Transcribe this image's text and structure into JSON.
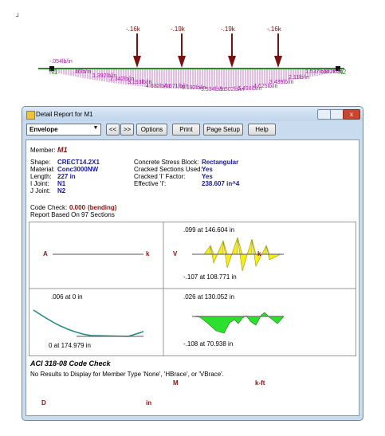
{
  "beam": {
    "loads": [
      "-.16k",
      "-.19k",
      "-.19k",
      "-.16k"
    ],
    "nodes": [
      "N1",
      "N2"
    ],
    "dist_labels": [
      "-.054lb/in",
      ".46lb/in",
      "1.392lb/in",
      "2.342lb/in",
      "3.193lb/in",
      "4.632lb/in",
      "4.671lb/in",
      "5.192lb/in",
      "5.534lb/in",
      "5.502lb/in",
      "5.498lb/in",
      "4.625lb/in",
      "3.439lb/in",
      "2.11lb/in",
      "1.537lb/in",
      ".572lb/in"
    ]
  },
  "window": {
    "title": "Detail Report for M1",
    "dropdown": "Envelope",
    "buttons": [
      "<<",
      ">>",
      "Options",
      "Print",
      "Page Setup",
      "Help"
    ]
  },
  "member": {
    "label": "Member:",
    "value": "M1"
  },
  "props_left": [
    [
      "Shape:",
      "CRECT14.2X1"
    ],
    [
      "Material:",
      "Conc3000NW"
    ],
    [
      "Length:",
      "227 in"
    ],
    [
      "I Joint:",
      "N1"
    ],
    [
      "J Joint:",
      "N2"
    ]
  ],
  "props_right": [
    [
      "Concrete Stress Block:",
      "Rectangular"
    ],
    [
      "Cracked Sections Used:",
      "Yes"
    ],
    [
      "Cracked 'I' Factor:",
      "Yes"
    ],
    [
      "Effective 'I':",
      "238.607 in^4"
    ]
  ],
  "code_check": {
    "label": "Code Check:",
    "value": "0.000",
    "note": "(bending)"
  },
  "report_note": "Report Based On 97 Sections",
  "diagrams": [
    {
      "left": "A",
      "right": "k"
    },
    {
      "left": "V",
      "right": "k",
      "max": ".099 at 146.604 in",
      "min": "-.107 at 108.771 in"
    },
    {
      "left": "D",
      "right": "in",
      "max": ".006 at 0 in",
      "min": "0 at 174.979 in"
    },
    {
      "left": "M",
      "right": "k-ft",
      "max": ".026 at 130.052 in",
      "min": "-.108 at 70.938 in"
    }
  ],
  "section": {
    "title": "ACI 318-08 Code Check",
    "message": "No Results to Display for Member Type 'None', 'HBrace', or 'VBrace'."
  }
}
